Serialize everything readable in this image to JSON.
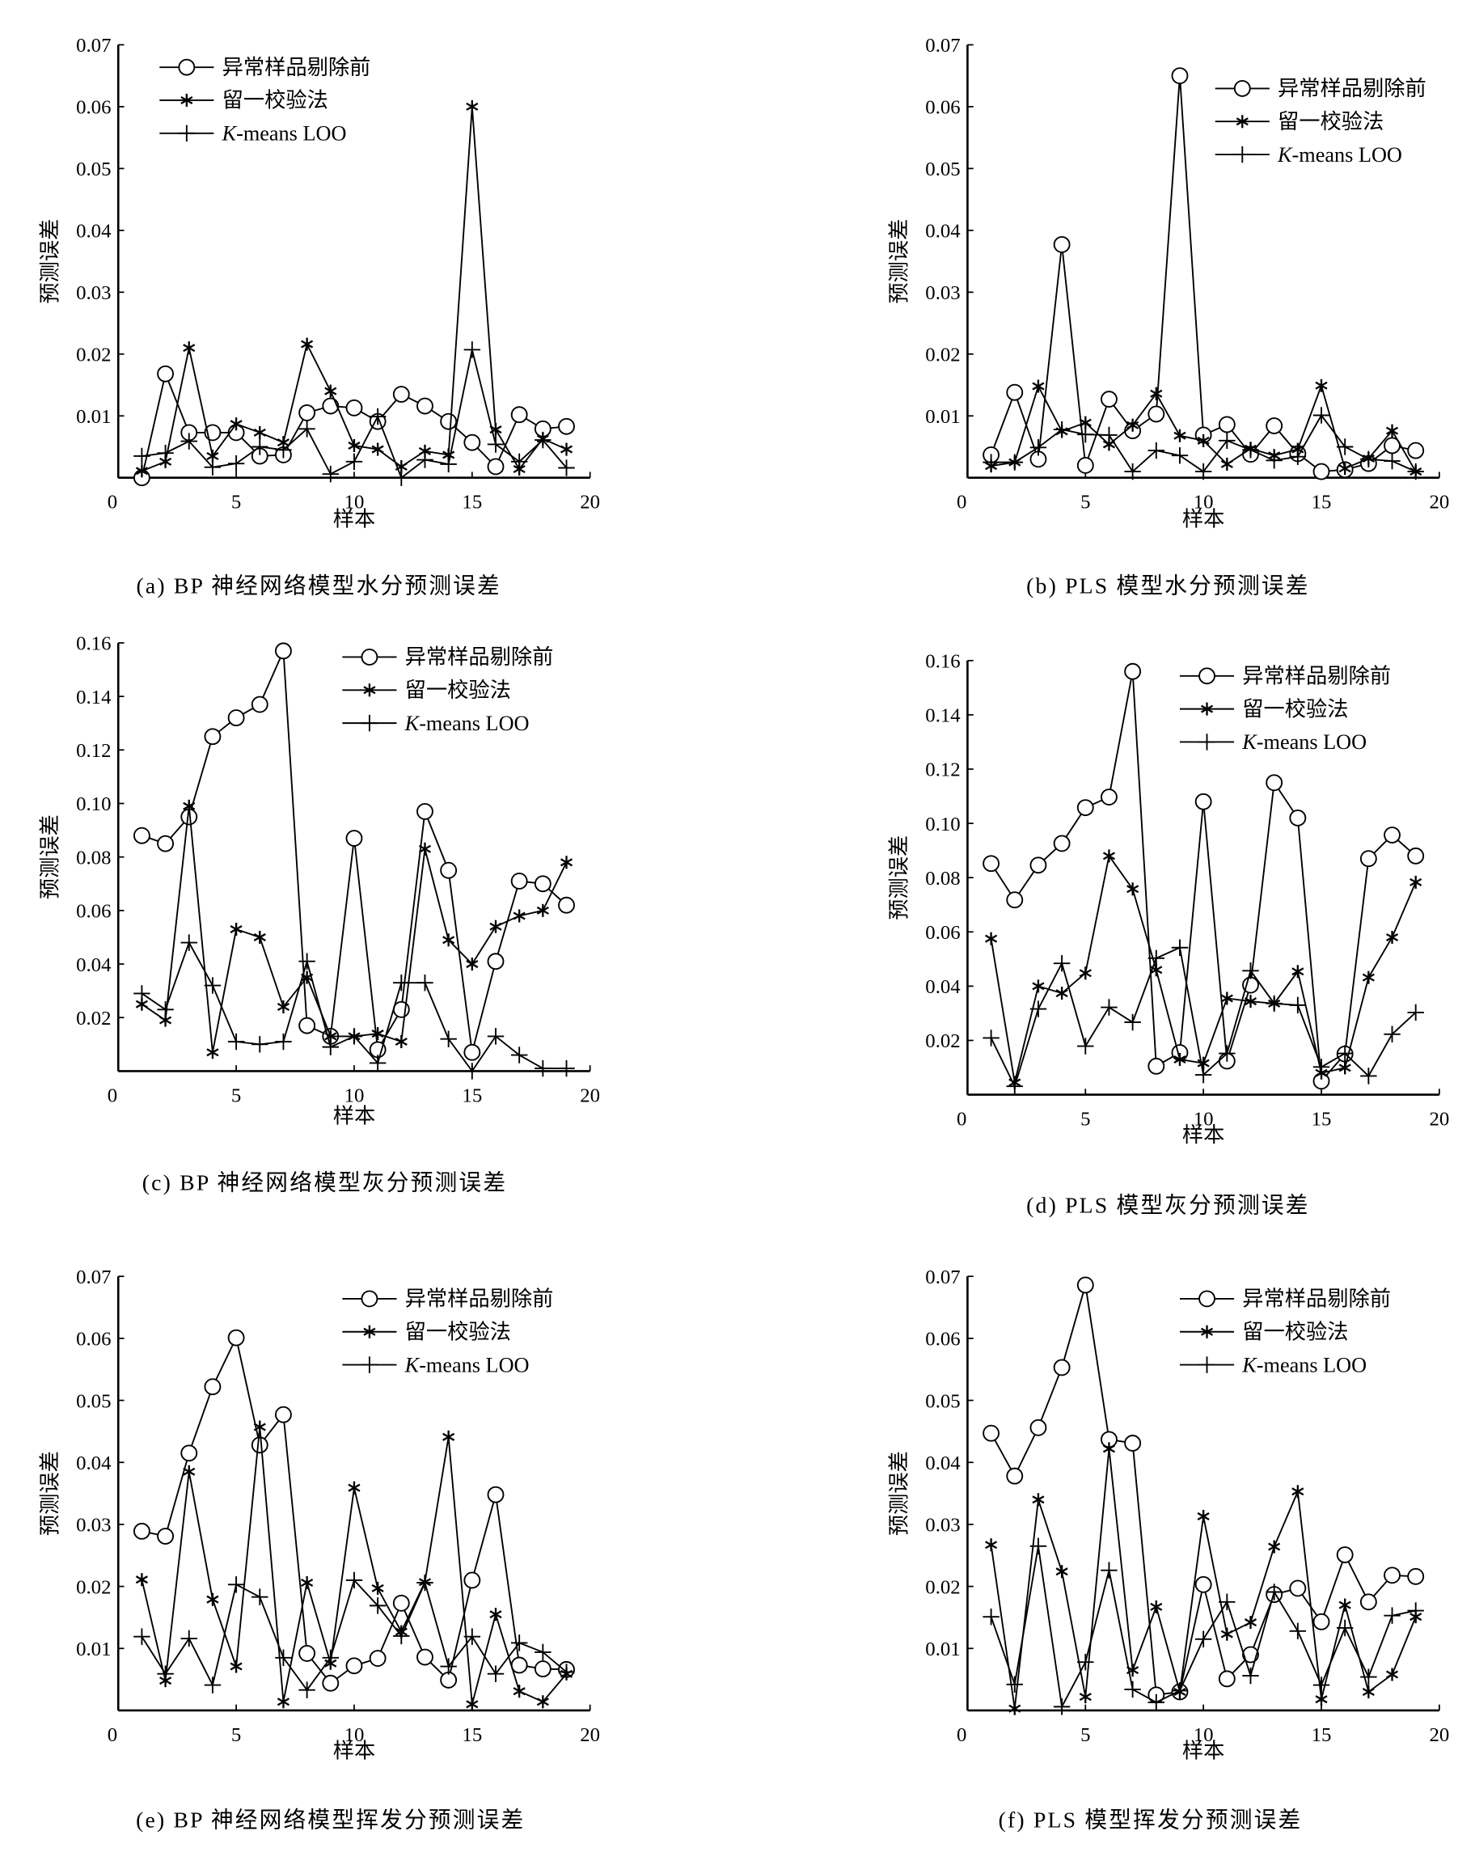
{
  "chart_data": [
    {
      "type": "line",
      "title": "(a) BP 神经网络模型水分预测误差",
      "xlabel": "样本",
      "ylabel": "预测误差",
      "xlim": [
        0,
        20
      ],
      "ylim": [
        0,
        0.07
      ],
      "xticks": [
        "0",
        "5",
        "10",
        "15",
        "20"
      ],
      "yticks": [
        "0.01",
        "0.02",
        "0.03",
        "0.04",
        "0.05",
        "0.06",
        "0.07"
      ],
      "legend_position": "top-left",
      "grid": false,
      "x": [
        1,
        2,
        3,
        4,
        5,
        6,
        7,
        8,
        9,
        10,
        11,
        12,
        13,
        14,
        15,
        16,
        17,
        18,
        19
      ],
      "series": [
        {
          "name": "异常样品剔除前",
          "marker": "circle",
          "values": [
            0.0,
            0.0168,
            0.0073,
            0.0073,
            0.0073,
            0.0035,
            0.0037,
            0.0105,
            0.0116,
            0.0113,
            0.0091,
            0.0135,
            0.0116,
            0.0091,
            0.0057,
            0.0018,
            0.0102,
            0.0079,
            0.0083
          ]
        },
        {
          "name": "留一校验法",
          "marker": "asterisk",
          "values": [
            0.0011,
            0.0026,
            0.021,
            0.0035,
            0.0087,
            0.0073,
            0.0057,
            0.0216,
            0.014,
            0.0052,
            0.0046,
            0.0018,
            0.0043,
            0.0037,
            0.06,
            0.0078,
            0.0014,
            0.0063,
            0.0046
          ]
        },
        {
          "name": "K-means LOO",
          "marker": "plus",
          "values": [
            0.0035,
            0.004,
            0.0059,
            0.0017,
            0.0023,
            0.005,
            0.0045,
            0.0079,
            0.0006,
            0.0026,
            0.0099,
            0.0,
            0.0029,
            0.0022,
            0.0207,
            0.0054,
            0.0026,
            0.0061,
            0.0016
          ]
        }
      ]
    },
    {
      "type": "line",
      "title": "(b) PLS 模型水分预测误差",
      "xlabel": "样本",
      "ylabel": "预测误差",
      "xlim": [
        0,
        20
      ],
      "ylim": [
        0,
        0.07
      ],
      "xticks": [
        "0",
        "5",
        "10",
        "15",
        "20"
      ],
      "yticks": [
        "0.01",
        "0.02",
        "0.03",
        "0.04",
        "0.05",
        "0.06",
        "0.07"
      ],
      "legend_position": "top-right",
      "grid": false,
      "x": [
        1,
        2,
        3,
        4,
        5,
        6,
        7,
        8,
        9,
        10,
        11,
        12,
        13,
        14,
        15,
        16,
        17,
        18,
        19
      ],
      "series": [
        {
          "name": "异常样品剔除前",
          "marker": "circle",
          "values": [
            0.0037,
            0.0138,
            0.003,
            0.0377,
            0.002,
            0.0127,
            0.0076,
            0.0103,
            0.065,
            0.0069,
            0.0086,
            0.0038,
            0.0084,
            0.0039,
            0.001,
            0.0013,
            0.0023,
            0.0052,
            0.0044
          ]
        },
        {
          "name": "留一校验法",
          "marker": "asterisk",
          "values": [
            0.0019,
            0.0025,
            0.0148,
            0.0075,
            0.0089,
            0.0054,
            0.0085,
            0.0136,
            0.0068,
            0.006,
            0.0022,
            0.0047,
            0.0036,
            0.0046,
            0.0149,
            0.0015,
            0.0031,
            0.0076,
            0.001
          ]
        },
        {
          "name": "K-means LOO",
          "marker": "plus",
          "values": [
            0.0025,
            0.0025,
            0.0049,
            0.0078,
            0.007,
            0.0069,
            0.001,
            0.0044,
            0.0036,
            0.001,
            0.006,
            0.0045,
            0.0028,
            0.0034,
            0.0101,
            0.005,
            0.003,
            0.0027,
            0.001
          ]
        }
      ]
    },
    {
      "type": "line",
      "title": "(c) BP 神经网络模型灰分预测误差",
      "xlabel": "样本",
      "ylabel": "预测误差",
      "xlim": [
        0,
        20
      ],
      "ylim": [
        0,
        0.16
      ],
      "xticks": [
        "0",
        "5",
        "10",
        "15",
        "20"
      ],
      "yticks": [
        "0.02",
        "0.04",
        "0.06",
        "0.08",
        "0.10",
        "0.12",
        "0.14",
        "0.16"
      ],
      "legend_position": "top-right",
      "grid": false,
      "x": [
        1,
        2,
        3,
        4,
        5,
        6,
        7,
        8,
        9,
        10,
        11,
        12,
        13,
        14,
        15,
        16,
        17,
        18,
        19
      ],
      "series": [
        {
          "name": "异常样品剔除前",
          "marker": "circle",
          "values": [
            0.088,
            0.085,
            0.095,
            0.125,
            0.132,
            0.137,
            0.157,
            0.017,
            0.013,
            0.087,
            0.008,
            0.023,
            0.097,
            0.075,
            0.007,
            0.041,
            0.071,
            0.07,
            0.062
          ]
        },
        {
          "name": "留一校验法",
          "marker": "asterisk",
          "values": [
            0.025,
            0.019,
            0.099,
            0.007,
            0.053,
            0.05,
            0.024,
            0.035,
            0.013,
            0.013,
            0.014,
            0.011,
            0.083,
            0.049,
            0.04,
            0.054,
            0.058,
            0.06,
            0.078
          ]
        },
        {
          "name": "K-means LOO",
          "marker": "plus",
          "values": [
            0.029,
            0.023,
            0.048,
            0.032,
            0.011,
            0.01,
            0.011,
            0.041,
            0.009,
            0.013,
            0.003,
            0.033,
            0.033,
            0.012,
            0.0,
            0.013,
            0.006,
            0.001,
            0.001
          ]
        }
      ]
    },
    {
      "type": "line",
      "title": "(d) PLS 模型灰分预测误差",
      "xlabel": "样本",
      "ylabel": "预测误差",
      "xlim": [
        0,
        20
      ],
      "ylim": [
        0,
        0.16
      ],
      "xticks": [
        "0",
        "5",
        "10",
        "15",
        "20"
      ],
      "yticks": [
        "0.02",
        "0.04",
        "0.06",
        "0.08",
        "0.10",
        "0.12",
        "0.14",
        "0.16"
      ],
      "legend_position": "top-right",
      "grid": false,
      "x": [
        1,
        2,
        3,
        4,
        5,
        6,
        7,
        8,
        9,
        10,
        11,
        12,
        13,
        14,
        15,
        16,
        17,
        18,
        19
      ],
      "series": [
        {
          "name": "异常样品剔除前",
          "marker": "circle",
          "values": [
            0.0852,
            0.0718,
            0.0846,
            0.0926,
            0.1058,
            0.1097,
            0.156,
            0.0105,
            0.0155,
            0.108,
            0.0124,
            0.0404,
            0.115,
            0.102,
            0.005,
            0.015,
            0.087,
            0.0957,
            0.088
          ]
        },
        {
          "name": "留一校验法",
          "marker": "asterisk",
          "values": [
            0.0575,
            0.0045,
            0.04,
            0.0374,
            0.0448,
            0.088,
            0.0758,
            0.046,
            0.013,
            0.0116,
            0.0355,
            0.0344,
            0.0336,
            0.0454,
            0.008,
            0.0099,
            0.0432,
            0.058,
            0.0783
          ]
        },
        {
          "name": "K-means LOO",
          "marker": "plus",
          "values": [
            0.0209,
            0.0031,
            0.0316,
            0.0484,
            0.0179,
            0.0322,
            0.0267,
            0.0503,
            0.0542,
            0.0073,
            0.0152,
            0.0457,
            0.0336,
            0.033,
            0.0102,
            0.0152,
            0.0069,
            0.0223,
            0.0303
          ]
        }
      ]
    },
    {
      "type": "line",
      "title": "(e) BP 神经网络模型挥发分预测误差",
      "xlabel": "样本",
      "ylabel": "预测误差",
      "xlim": [
        0,
        20
      ],
      "ylim": [
        0,
        0.07
      ],
      "xticks": [
        "0",
        "5",
        "10",
        "15",
        "20"
      ],
      "yticks": [
        "0.01",
        "0.02",
        "0.03",
        "0.04",
        "0.05",
        "0.06",
        "0.07"
      ],
      "legend_position": "top-right",
      "grid": false,
      "x": [
        1,
        2,
        3,
        4,
        5,
        6,
        7,
        8,
        9,
        10,
        11,
        12,
        13,
        14,
        15,
        16,
        17,
        18,
        19
      ],
      "series": [
        {
          "name": "异常样品剔除前",
          "marker": "circle",
          "values": [
            0.0289,
            0.0281,
            0.0415,
            0.0522,
            0.0601,
            0.0428,
            0.0477,
            0.0092,
            0.0044,
            0.0072,
            0.0084,
            0.0173,
            0.0086,
            0.0049,
            0.021,
            0.0348,
            0.0073,
            0.0067,
            0.0066
          ]
        },
        {
          "name": "留一校验法",
          "marker": "asterisk",
          "values": [
            0.0211,
            0.0048,
            0.0385,
            0.0179,
            0.0071,
            0.0457,
            0.0014,
            0.0206,
            0.0076,
            0.0359,
            0.0197,
            0.0127,
            0.0207,
            0.0441,
            0.001,
            0.0155,
            0.0031,
            0.0014,
            0.0059
          ]
        },
        {
          "name": "K-means LOO",
          "marker": "plus",
          "values": [
            0.0119,
            0.0059,
            0.0116,
            0.0041,
            0.0203,
            0.0183,
            0.0085,
            0.0033,
            0.0085,
            0.021,
            0.0169,
            0.012,
            0.0206,
            0.0071,
            0.0119,
            0.0059,
            0.0109,
            0.0094,
            0.0062
          ]
        }
      ]
    },
    {
      "type": "line",
      "title": "(f) PLS 模型挥发分预测误差",
      "xlabel": "样本",
      "ylabel": "预测误差",
      "xlim": [
        0,
        20
      ],
      "ylim": [
        0,
        0.07
      ],
      "xticks": [
        "0",
        "5",
        "10",
        "15",
        "20"
      ],
      "yticks": [
        "0.01",
        "0.02",
        "0.03",
        "0.04",
        "0.05",
        "0.06",
        "0.07"
      ],
      "legend_position": "top-right",
      "grid": false,
      "x": [
        1,
        2,
        3,
        4,
        5,
        6,
        7,
        8,
        9,
        10,
        11,
        12,
        13,
        14,
        15,
        16,
        17,
        18,
        19
      ],
      "series": [
        {
          "name": "异常样品剔除前",
          "marker": "circle",
          "values": [
            0.0447,
            0.0378,
            0.0456,
            0.0553,
            0.0686,
            0.0437,
            0.0431,
            0.0025,
            0.003,
            0.0203,
            0.0051,
            0.009,
            0.0187,
            0.0197,
            0.0143,
            0.0251,
            0.0175,
            0.0218,
            0.0216
          ]
        },
        {
          "name": "留一校验法",
          "marker": "asterisk",
          "values": [
            0.0267,
            0.0003,
            0.034,
            0.0224,
            0.0022,
            0.0422,
            0.0065,
            0.0167,
            0.003,
            0.0313,
            0.0123,
            0.0142,
            0.0264,
            0.0353,
            0.0018,
            0.017,
            0.003,
            0.0058,
            0.0151
          ]
        },
        {
          "name": "K-means LOO",
          "marker": "plus",
          "values": [
            0.0151,
            0.0042,
            0.0265,
            0.0006,
            0.0078,
            0.0226,
            0.0034,
            0.0013,
            0.0032,
            0.0115,
            0.0175,
            0.0056,
            0.0191,
            0.0128,
            0.0041,
            0.0133,
            0.0054,
            0.0153,
            0.0161
          ]
        }
      ]
    }
  ]
}
